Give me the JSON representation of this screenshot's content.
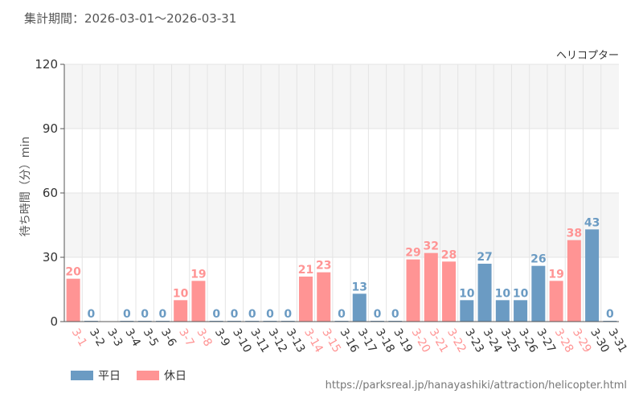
{
  "period_text": "集計期間：2026-03-01～2026-03-31",
  "source_url": "https://parksreal.jp/hanayashiki/attraction/helicopter.html",
  "colors": {
    "weekday": "#6b9bc3",
    "holiday": "#ff9494",
    "band": "#f5f5f5",
    "grid": "#e4e4e4"
  },
  "chart_data": {
    "type": "bar",
    "title": "ヘリコプター",
    "ylabel": "待ち時間（分）min",
    "ylim": [
      0,
      120
    ],
    "yticks": [
      0,
      30,
      60,
      90,
      120
    ],
    "legend": [
      {
        "label": "平日",
        "type": "weekday"
      },
      {
        "label": "休日",
        "type": "holiday"
      }
    ],
    "categories": [
      "3-1",
      "3-2",
      "3-3",
      "3-4",
      "3-5",
      "3-6",
      "3-7",
      "3-8",
      "3-9",
      "3-10",
      "3-11",
      "3-12",
      "3-13",
      "3-14",
      "3-15",
      "3-16",
      "3-17",
      "3-18",
      "3-19",
      "3-20",
      "3-21",
      "3-22",
      "3-23",
      "3-24",
      "3-25",
      "3-26",
      "3-27",
      "3-28",
      "3-29",
      "3-30",
      "3-31"
    ],
    "values": [
      20,
      0,
      null,
      0,
      0,
      0,
      10,
      19,
      0,
      0,
      0,
      0,
      0,
      21,
      23,
      0,
      13,
      0,
      0,
      29,
      32,
      28,
      10,
      27,
      10,
      10,
      26,
      19,
      38,
      43,
      0
    ],
    "day_types": [
      "holiday",
      "weekday",
      "weekday",
      "weekday",
      "weekday",
      "weekday",
      "holiday",
      "holiday",
      "weekday",
      "weekday",
      "weekday",
      "weekday",
      "weekday",
      "holiday",
      "holiday",
      "weekday",
      "weekday",
      "weekday",
      "weekday",
      "holiday",
      "holiday",
      "holiday",
      "weekday",
      "weekday",
      "weekday",
      "weekday",
      "weekday",
      "holiday",
      "holiday",
      "weekday",
      "weekday"
    ]
  }
}
